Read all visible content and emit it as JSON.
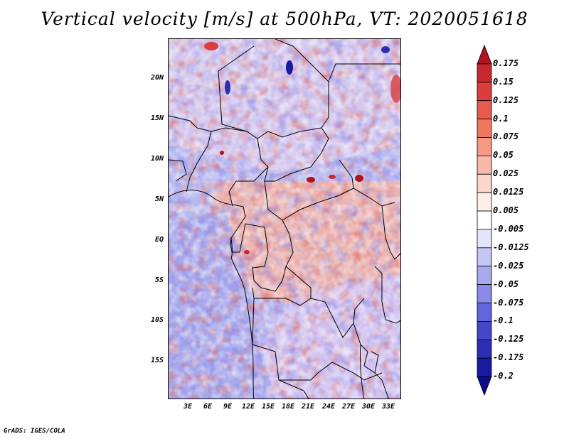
{
  "title": "Vertical velocity [m/s] at 500hPa, VT: 2020051618",
  "footer": "GrADS: IGES/COLA",
  "map": {
    "lat_labels": [
      "20N",
      "15N",
      "10N",
      "5N",
      "EQ",
      "5S",
      "10S",
      "15S"
    ],
    "lon_labels": [
      "3E",
      "6E",
      "9E",
      "12E",
      "15E",
      "18E",
      "21E",
      "24E",
      "27E",
      "30E",
      "33E"
    ],
    "lat_range": [
      -19.5,
      24.5
    ],
    "lon_range": [
      0,
      35
    ]
  },
  "colorbar": {
    "labels": [
      "0.175",
      "0.15",
      "0.125",
      "0.1",
      "0.075",
      "0.05",
      "0.025",
      "0.0125",
      "0.005",
      "-0.005",
      "-0.0125",
      "-0.025",
      "-0.05",
      "-0.075",
      "-0.1",
      "-0.125",
      "-0.175",
      "-0.2"
    ],
    "colors": [
      "#b0141e",
      "#c8282d",
      "#dc3c3c",
      "#e65a50",
      "#f07860",
      "#f59a86",
      "#f8b8aa",
      "#fbd6cc",
      "#fdeee8",
      "#ffffff",
      "#e4e4fa",
      "#c6c6f4",
      "#a8a8ee",
      "#8a8ae8",
      "#6464dc",
      "#4646c8",
      "#2d2db4",
      "#1a1aa0",
      "#0c0c8a"
    ]
  }
}
